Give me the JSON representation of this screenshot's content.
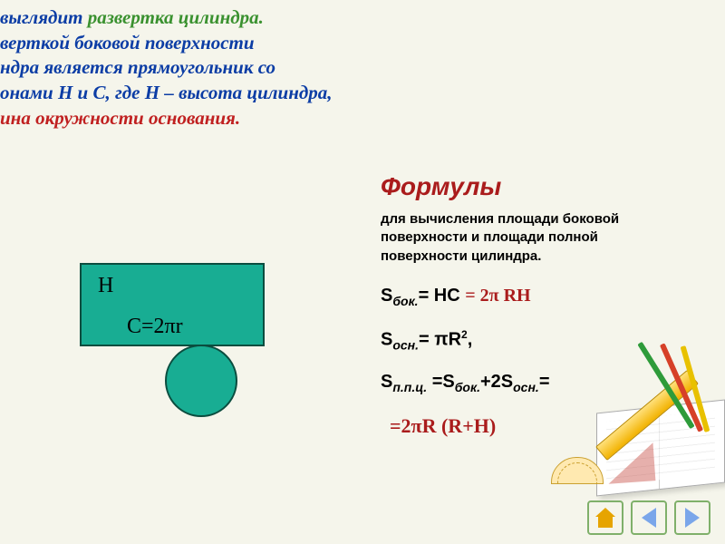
{
  "intro": {
    "l1a": "выглядит ",
    "l1b": "развертка цилиндра.",
    "l2": "верткой боковой поверхности",
    "l3": "ндра является прямоугольник со",
    "l4": "онами H и C, где H – высота цилиндра,",
    "l5": "ина окружности основания."
  },
  "diagram": {
    "H": "H",
    "C": "C=2πr"
  },
  "formulas": {
    "title": "Формулы",
    "subtitle": "для вычисления площади боковой поверхности и площади полной поверхности цилиндра.",
    "s_bok_left": "S",
    "s_bok_sub": "бок.",
    "s_bok_mid": "= HC ",
    "s_bok_red": "= 2π RH",
    "s_osn_left": "S",
    "s_osn_sub": "осн.",
    "s_osn_mid": "= πR",
    "squared": "2",
    "s_osn_end": ",",
    "s_full_left": "S",
    "s_full_sub1": "п.п.ц.",
    "s_full_mid1": " =S",
    "s_full_sub2": "бок.",
    "s_full_mid2": "+2S",
    "s_full_sub3": "осн.",
    "s_full_end": "=",
    "final": "=2πR (R+H)"
  },
  "colors": {
    "bg": "#f5f5eb",
    "green_text": "#3a912f",
    "blue_text": "#0c3da5",
    "red_text": "#aa1c1c",
    "teal": "#18ad93",
    "teal_border": "#0b4d3f",
    "nav_border": "#7fb06a",
    "home": "#e6a400",
    "arrow": "#7aa6ea"
  }
}
